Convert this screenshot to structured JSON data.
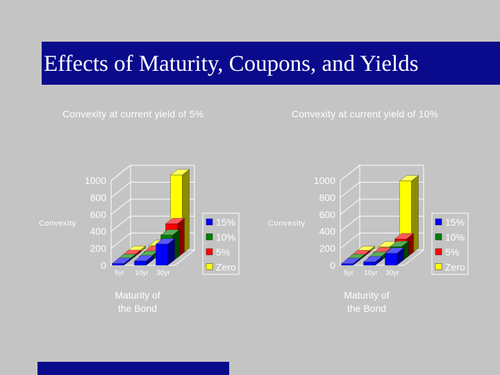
{
  "slide": {
    "title": "Effects of Maturity, Coupons, and Yields"
  },
  "chart_data": [
    {
      "type": "bar",
      "title": "Convexity at current yield of 5%",
      "xlabel_lines": [
        "Maturity of",
        "the Bond"
      ],
      "ylabel": "Convexity",
      "categories": [
        "5yr",
        "10yr",
        "30yr"
      ],
      "yticks": [
        "0",
        "200",
        "400",
        "600",
        "800",
        "1000"
      ],
      "ylim": [
        0,
        1000
      ],
      "series": [
        {
          "name": "15%",
          "color": "#0000ff",
          "values": [
            20,
            50,
            250
          ]
        },
        {
          "name": "10%",
          "color": "#008000",
          "values": [
            22,
            60,
            310
          ]
        },
        {
          "name": "5%",
          "color": "#ff0000",
          "values": [
            24,
            70,
            400
          ]
        },
        {
          "name": "Zero",
          "color": "#ffff00",
          "values": [
            27,
            95,
            930
          ]
        }
      ]
    },
    {
      "type": "bar",
      "title": "Convexity at current yield of 10%",
      "xlabel_lines": [
        "Maturity of",
        "the Bond"
      ],
      "ylabel": "Convexity",
      "categories": [
        "5yr",
        "10yr",
        "30yr"
      ],
      "yticks": [
        "0",
        "200",
        "400",
        "600",
        "800",
        "1000"
      ],
      "ylim": [
        0,
        1000
      ],
      "series": [
        {
          "name": "15%",
          "color": "#0000ff",
          "values": [
            18,
            40,
            140
          ]
        },
        {
          "name": "10%",
          "color": "#008000",
          "values": [
            20,
            48,
            175
          ]
        },
        {
          "name": "5%",
          "color": "#ff0000",
          "values": [
            22,
            57,
            220
          ]
        },
        {
          "name": "Zero",
          "color": "#ffff00",
          "values": [
            24,
            80,
            860
          ]
        }
      ]
    }
  ]
}
